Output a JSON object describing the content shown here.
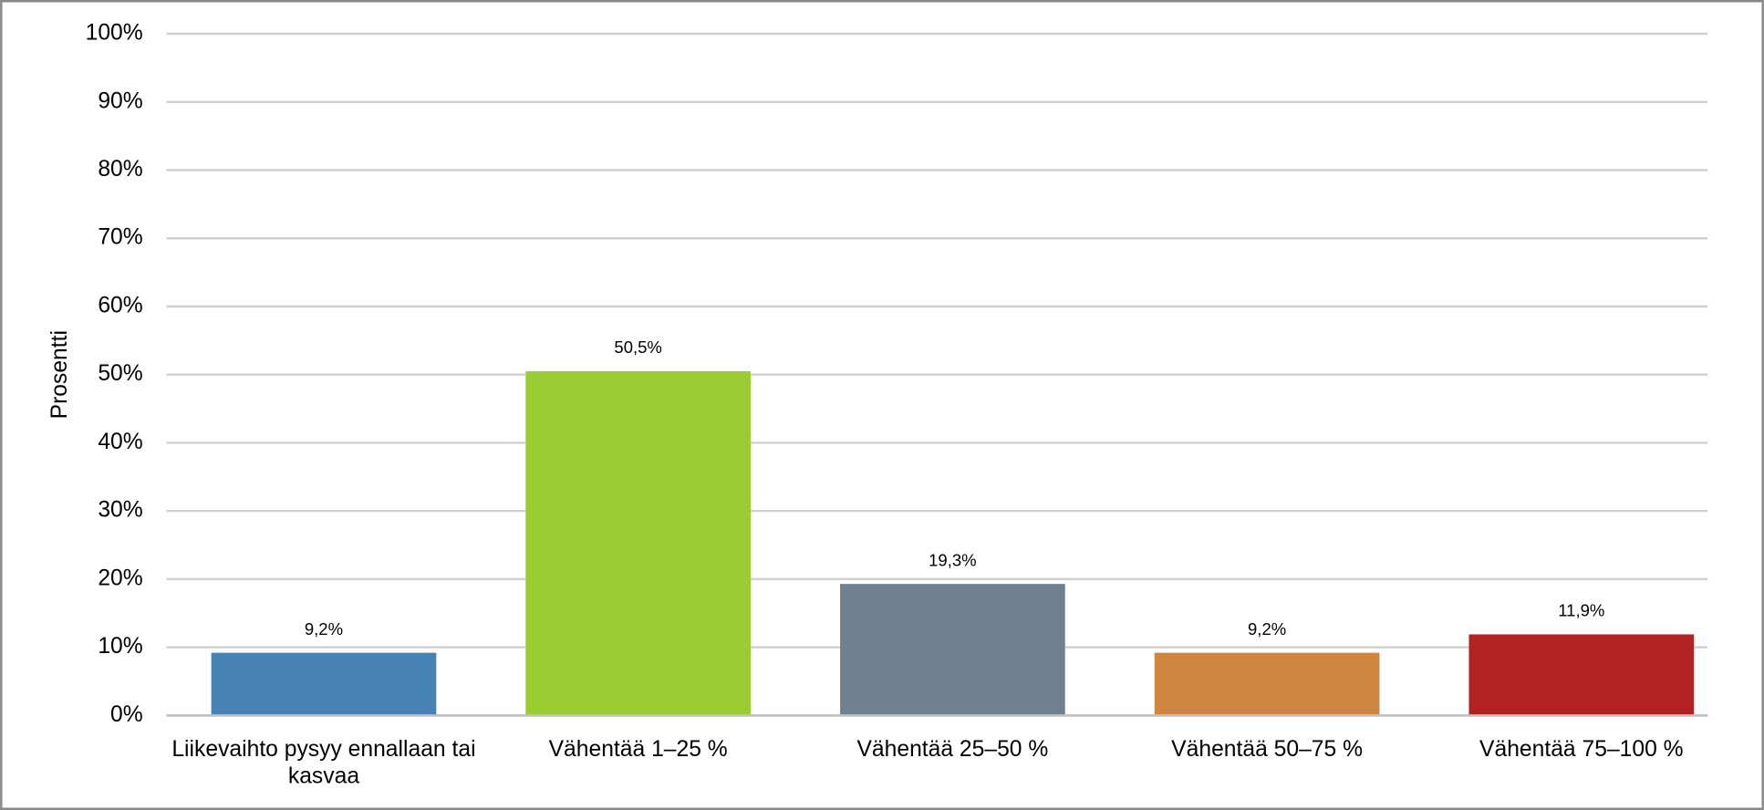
{
  "chart_data": {
    "type": "bar",
    "y_label": "Prosentti",
    "categories": [
      "Liikevaihto pysyy ennallaan tai kasvaa",
      "Vähentää 1–25 %",
      "Vähentää 25–50 %",
      "Vähentää 50–75 %",
      "Vähentää 75–100 %"
    ],
    "values": [
      9.2,
      50.5,
      19.3,
      9.2,
      11.9
    ],
    "value_labels": [
      "9,2%",
      "50,5%",
      "19,3%",
      "9,2%",
      "11,9%"
    ],
    "colors": [
      "#4682b4",
      "#9acd32",
      "#708090",
      "#cd853f",
      "#b22222"
    ],
    "ylim": [
      0,
      100
    ],
    "yticks": [
      {
        "value": 0,
        "label": "0%"
      },
      {
        "value": 10,
        "label": "10%"
      },
      {
        "value": 20,
        "label": "20%"
      },
      {
        "value": 30,
        "label": "30%"
      },
      {
        "value": 40,
        "label": "40%"
      },
      {
        "value": 50,
        "label": "50%"
      },
      {
        "value": 60,
        "label": "60%"
      },
      {
        "value": 70,
        "label": "70%"
      },
      {
        "value": 80,
        "label": "80%"
      },
      {
        "value": 90,
        "label": "90%"
      },
      {
        "value": 100,
        "label": "100%"
      }
    ],
    "grid": true
  }
}
